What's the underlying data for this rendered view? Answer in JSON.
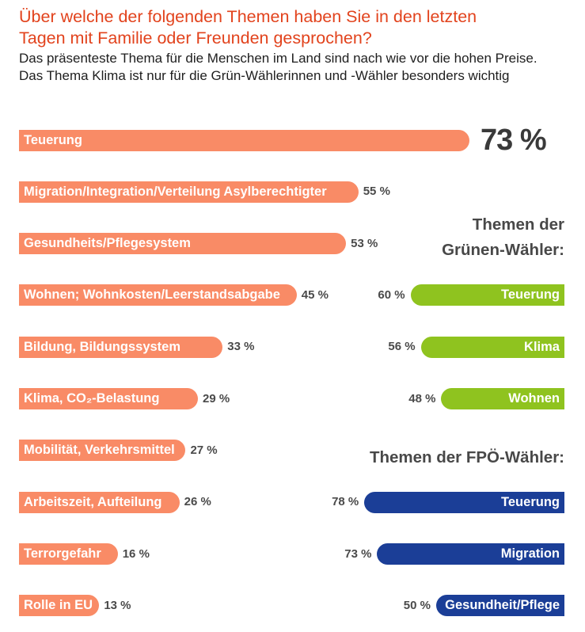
{
  "chart_data": [
    {
      "type": "bar",
      "title_lines": [
        "Über welche der folgenden Themen haben Sie in den letzten",
        "Tagen mit Familie oder Freunden gesprochen?"
      ],
      "subtitle_lines": [
        "Das präsenteste Thema für die Menschen im Land sind nach wie vor die hohen Preise.",
        "Das Thema Klima ist nur für die Grün-Wählerinnen und -Wähler besonders wichtig"
      ],
      "categories": [
        "Teuerung",
        "Migration/Integration/Verteilung Asylberechtigter",
        "Gesundheits/Pflegesystem",
        "Wohnen; Wohnkosten/Leerstandsabgabe",
        "Bildung, Bildungssystem",
        "Klima, CO₂-Belastung",
        "Mobilität, Verkehrsmittel",
        "Arbeitszeit, Aufteilung",
        "Terrorgefahr",
        "Rolle in EU"
      ],
      "values": [
        73,
        55,
        53,
        45,
        33,
        29,
        27,
        26,
        16,
        13
      ],
      "value_labels": [
        "73 %",
        "55 %",
        "53 %",
        "45 %",
        "33 %",
        "29 %",
        "27 %",
        "26 %",
        "16 %",
        "13 %"
      ],
      "color": "#f98b66"
    },
    {
      "type": "bar",
      "title_lines": [
        "Themen der",
        "Grünen-Wähler:"
      ],
      "categories": [
        "Teuerung",
        "Klima",
        "Wohnen"
      ],
      "values": [
        60,
        56,
        48
      ],
      "value_labels": [
        "60 %",
        "56 %",
        "48 %"
      ],
      "color": "#8fc31f"
    },
    {
      "type": "bar",
      "title_lines": [
        "Themen der FPÖ-Wähler:"
      ],
      "categories": [
        "Teuerung",
        "Migration",
        "Gesundheit/Pflege"
      ],
      "values": [
        78,
        73,
        50
      ],
      "value_labels": [
        "78 %",
        "73 %",
        "50 %"
      ],
      "color": "#1b3e97"
    }
  ]
}
